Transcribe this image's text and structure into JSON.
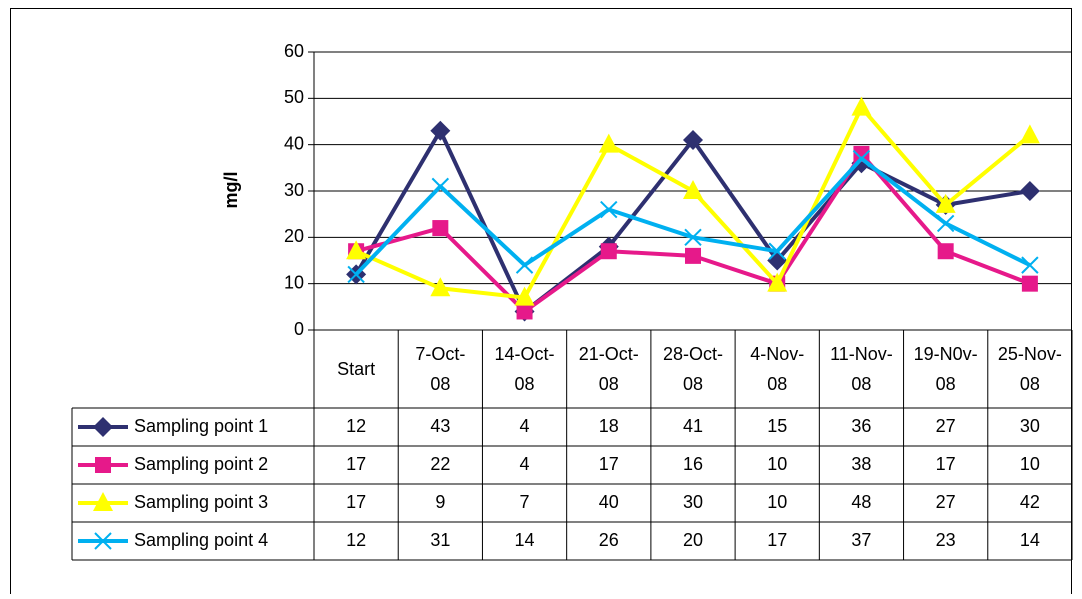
{
  "chart_data": {
    "type": "line",
    "y_label": "mg/l",
    "categories": [
      "Start",
      "7-Oct-08",
      "14-Oct-08",
      "21-Oct-08",
      "28-Oct-08",
      "4-Nov-08",
      "11-Nov-08",
      "19-N0v-08",
      "25-Nov-08"
    ],
    "series": [
      {
        "name": "Sampling point 1",
        "color": "#2e3070",
        "marker": "diamond",
        "values": [
          12,
          43,
          4,
          18,
          41,
          15,
          36,
          27,
          30
        ]
      },
      {
        "name": "Sampling point 2",
        "color": "#e6198a",
        "marker": "square",
        "values": [
          17,
          22,
          4,
          17,
          16,
          10,
          38,
          17,
          10
        ]
      },
      {
        "name": "Sampling point 3",
        "color": "#ffff00",
        "marker": "triangle",
        "values": [
          17,
          9,
          7,
          40,
          30,
          10,
          48,
          27,
          42
        ]
      },
      {
        "name": "Sampling point 4",
        "color": "#00b0f0",
        "marker": "x",
        "values": [
          12,
          31,
          14,
          26,
          20,
          17,
          37,
          23,
          14
        ]
      }
    ],
    "ylim": [
      0,
      60
    ],
    "yticks": [
      0,
      10,
      20,
      30,
      40,
      50,
      60
    ],
    "grid": true
  }
}
